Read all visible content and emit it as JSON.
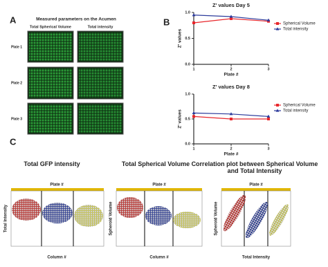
{
  "panel_a": {
    "label": "A",
    "title": "Measured parameters on the Acumen",
    "columns": [
      "Total Spherical Volume",
      "Total intensity"
    ],
    "rows": [
      "Plate 1",
      "Plate 2",
      "Plate 3"
    ]
  },
  "panel_b_label": "B",
  "chart_data": [
    {
      "type": "line",
      "title": "Z' values Day 5",
      "x_label": "Plate #",
      "y_label": "Z' values",
      "x": [
        1,
        2,
        3
      ],
      "xlim": [
        1,
        3
      ],
      "xticks": [
        1,
        2,
        3
      ],
      "ylim": [
        0,
        1
      ],
      "yticks": [
        {
          "value": 0,
          "label": "0.0"
        },
        0.5,
        {
          "value": 1,
          "label": "1.0"
        }
      ],
      "legend": "right",
      "series": [
        {
          "name": "Spherical Volume",
          "color": "#e8262b",
          "marker": "square",
          "values": [
            0.8,
            0.88,
            0.83
          ]
        },
        {
          "name": "Total intensity",
          "color": "#2b3a9b",
          "marker": "triangle",
          "values": [
            0.95,
            0.92,
            0.85
          ]
        }
      ]
    },
    {
      "type": "line",
      "title": "Z' values Day 8",
      "x_label": "Plate #",
      "y_label": "Z' values",
      "x": [
        1,
        2,
        3
      ],
      "xlim": [
        1,
        3
      ],
      "xticks": [
        1,
        2,
        3
      ],
      "ylim": [
        0,
        1
      ],
      "yticks": [
        {
          "value": 0,
          "label": "0.0"
        },
        0.5,
        {
          "value": 1,
          "label": "1.0"
        }
      ],
      "legend": "right",
      "series": [
        {
          "name": "Spherical Volume",
          "color": "#e8262b",
          "marker": "square",
          "values": [
            0.55,
            0.5,
            0.5
          ]
        },
        {
          "name": "Total intensity",
          "color": "#2b3a9b",
          "marker": "triangle",
          "values": [
            0.62,
            0.6,
            0.55
          ]
        }
      ]
    }
  ],
  "panel_c": {
    "label": "C",
    "plots": [
      {
        "title": "Total GFP intensity",
        "top_label": "Plate #",
        "y_label": "Total Intensity",
        "x_label": "Column #"
      },
      {
        "title": "Total Spherical Volume",
        "top_label": "Plate #",
        "y_label": "Spheroid Volume",
        "x_label": "Column #"
      },
      {
        "title": "Correlation plot between Spherical Volume and Total Intensity",
        "top_label": "Plate #",
        "y_label": "Spheroid Volume",
        "x_label": "Total Intensity"
      }
    ]
  }
}
